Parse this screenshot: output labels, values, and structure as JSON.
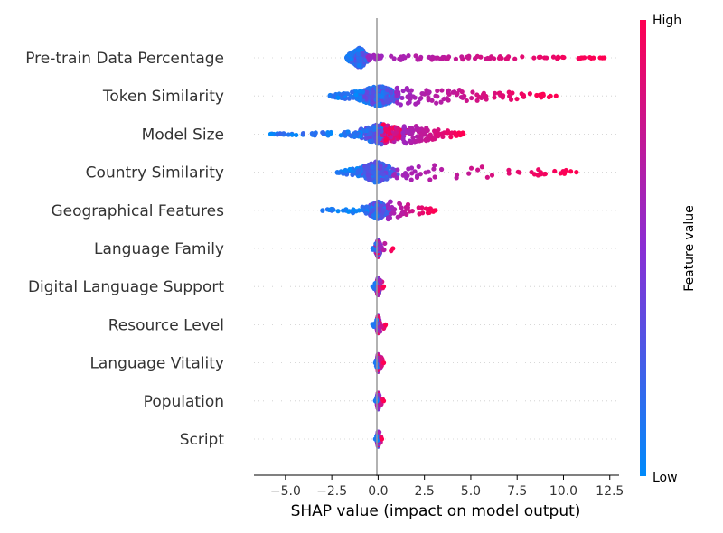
{
  "chart_data": {
    "type": "scatter",
    "subtype": "shap-beeswarm-summary",
    "xlabel": "SHAP value (impact on model output)",
    "xticks": [
      -5.0,
      -2.5,
      0.0,
      2.5,
      5.0,
      7.5,
      10.0,
      12.5
    ],
    "xtick_labels": [
      "−5.0",
      "−2.5",
      "0.0",
      "2.5",
      "5.0",
      "7.5",
      "10.0",
      "12.5"
    ],
    "xlim": [
      -6.7,
      13.0
    ],
    "colorbar": {
      "title": "Feature value",
      "high_label": "High",
      "low_label": "Low",
      "low_color": "#008bfb",
      "high_color": "#ff0052"
    },
    "features": [
      {
        "name": "Pre-train Data Percentage",
        "min": -1.7,
        "max": 12.2,
        "neg_spread": 0.5,
        "pos_spread": 0.2,
        "core_center": -1.0,
        "core_halfwidth": 0.7,
        "core_height": 0.8,
        "core_color": "low",
        "tail_density": "dense"
      },
      {
        "name": "Token Similarity",
        "min": -2.6,
        "max": 9.6,
        "neg_spread": 0.4,
        "pos_spread": 0.75,
        "core_center": 0.0,
        "core_halfwidth": 1.6,
        "core_height": 0.85,
        "core_color": "low",
        "tail_density": "dense"
      },
      {
        "name": "Model Size",
        "min": -5.8,
        "max": 4.6,
        "neg_spread": 0.2,
        "pos_spread": 0.8,
        "core_center": 0.2,
        "core_halfwidth": 1.9,
        "core_height": 0.85,
        "core_color": "split",
        "tail_density": "dense"
      },
      {
        "name": "Country Similarity",
        "min": -2.2,
        "max": 10.7,
        "neg_spread": 0.4,
        "pos_spread": 0.75,
        "core_center": -0.1,
        "core_halfwidth": 1.4,
        "core_height": 0.85,
        "core_color": "low",
        "tail_density": "medium"
      },
      {
        "name": "Geographical Features",
        "min": -3.0,
        "max": 3.1,
        "neg_spread": 0.3,
        "pos_spread": 0.75,
        "core_center": 0.0,
        "core_halfwidth": 0.9,
        "core_height": 0.7,
        "core_color": "low",
        "tail_density": "medium"
      },
      {
        "name": "Language Family",
        "min": -0.3,
        "max": 0.8,
        "neg_spread": 0.4,
        "pos_spread": 0.75,
        "core_center": 0.0,
        "core_halfwidth": 0.2,
        "core_height": 0.7,
        "core_color": "mixed",
        "tail_density": "sparse"
      },
      {
        "name": "Digital Language Support",
        "min": -0.3,
        "max": 0.3,
        "neg_spread": 0.4,
        "pos_spread": 0.75,
        "core_center": 0.0,
        "core_halfwidth": 0.15,
        "core_height": 0.7,
        "core_color": "mixed",
        "tail_density": "sparse"
      },
      {
        "name": "Resource Level",
        "min": -0.3,
        "max": 0.4,
        "neg_spread": 0.4,
        "pos_spread": 0.75,
        "core_center": 0.0,
        "core_halfwidth": 0.12,
        "core_height": 0.7,
        "core_color": "mixed",
        "tail_density": "sparse"
      },
      {
        "name": "Language Vitality",
        "min": -0.15,
        "max": 0.3,
        "neg_spread": 0.4,
        "pos_spread": 0.75,
        "core_center": 0.0,
        "core_halfwidth": 0.1,
        "core_height": 0.7,
        "core_color": "mixed",
        "tail_density": "sparse"
      },
      {
        "name": "Population",
        "min": -0.15,
        "max": 0.3,
        "neg_spread": 0.4,
        "pos_spread": 0.75,
        "core_center": 0.0,
        "core_halfwidth": 0.1,
        "core_height": 0.7,
        "core_color": "mixed",
        "tail_density": "sparse"
      },
      {
        "name": "Script",
        "min": -0.15,
        "max": 0.2,
        "neg_spread": 0.4,
        "pos_spread": 0.6,
        "core_center": 0.0,
        "core_halfwidth": 0.08,
        "core_height": 0.6,
        "core_color": "mixed",
        "tail_density": "sparse"
      }
    ],
    "grid": false,
    "legend": "colorbar-right"
  }
}
